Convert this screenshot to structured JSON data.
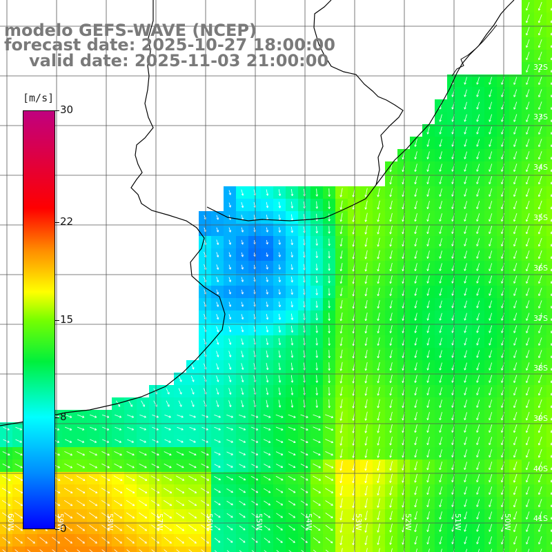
{
  "title": {
    "line1": "modelo GEFS-WAVE (NCEP)",
    "line2": "forecast date: 2025-10-27 18:00:00",
    "line3": "valid date: 2025-11-03 21:00:00"
  },
  "colorbar": {
    "unit": "[m/s]",
    "min": 0,
    "max": 30,
    "ticks": [
      "30",
      "22",
      "15",
      "8",
      "0"
    ],
    "tick_values": [
      30,
      22,
      15,
      8,
      0
    ],
    "colors": [
      "#0000ff",
      "#00b0ff",
      "#00ffff",
      "#00ff00",
      "#ffff00",
      "#ff8000",
      "#ff0000",
      "#c0007f"
    ]
  },
  "lat_labels": [
    "32S",
    "33S",
    "34S",
    "35S",
    "36S",
    "37S",
    "38S",
    "39S",
    "40S",
    "41S"
  ],
  "lon_labels": [
    "60W",
    "59W",
    "58W",
    "57W",
    "56W",
    "55W",
    "54W",
    "53W",
    "52W",
    "51W",
    "50W"
  ],
  "colors": {
    "land": "#ffffff",
    "coast": "#000000",
    "grid": "#555555",
    "arrows": "#ffffff",
    "title": "#7a7a7a"
  }
}
